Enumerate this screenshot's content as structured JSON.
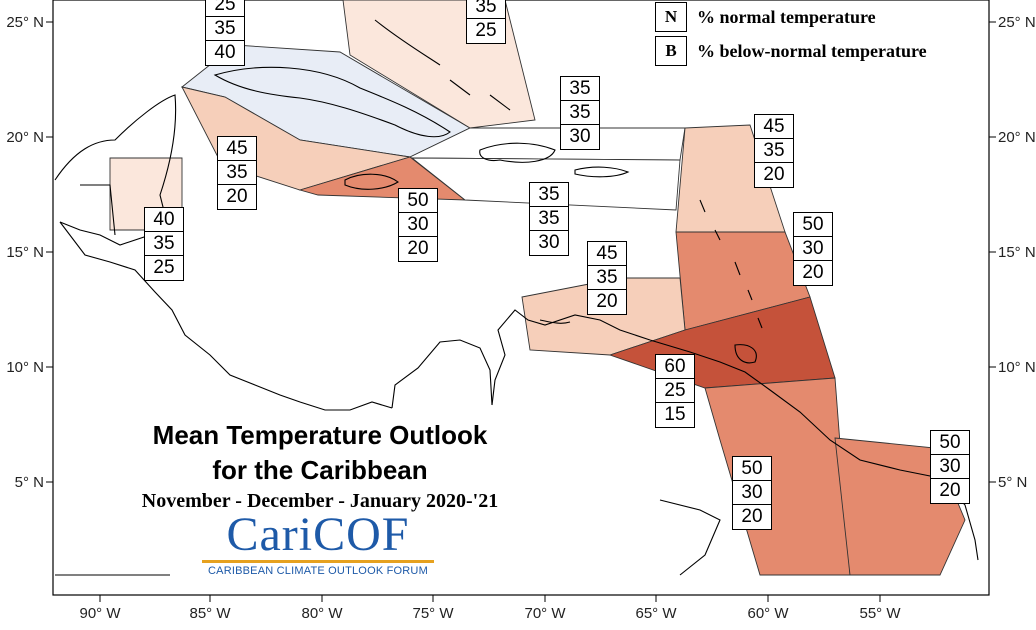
{
  "map": {
    "title_line1": "Mean Temperature Outlook",
    "title_line2": "for the Caribbean",
    "subtitle": "November - December - January 2020-'21",
    "logo": {
      "name": "CariCOF",
      "tagline": "CARIBBEAN CLIMATE OUTLOOK FORUM"
    },
    "legend": [
      {
        "key": "N",
        "text": "% normal temperature"
      },
      {
        "key": "B",
        "text": "% below-normal temperature"
      }
    ],
    "lon_labels": [
      "90° W",
      "85° W",
      "80° W",
      "75° W",
      "70° W",
      "65° W",
      "60° W",
      "55° W"
    ],
    "lat_labels": [
      "25° N",
      "20° N",
      "15° N",
      "10° N",
      "5° N"
    ],
    "color_scale": {
      "below_15": "#c5523a",
      "below_20": "#e48a6e",
      "below_20_light": "#edaa8f",
      "below_25": "#f6cfba",
      "below_25_pale": "#fbe7dc",
      "below_30": "#ffffff",
      "below_40": "#e8edf6"
    },
    "regions": [
      {
        "id": "bahamas-north",
        "values": [
          "35",
          "25"
        ]
      },
      {
        "id": "cuba",
        "values": [
          "25",
          "35",
          "40"
        ]
      },
      {
        "id": "belize-yucatan",
        "values": [
          "45",
          "35",
          "20"
        ]
      },
      {
        "id": "jamaica",
        "values": [
          "50",
          "30",
          "20"
        ]
      },
      {
        "id": "hispaniola-north",
        "values": [
          "35",
          "35",
          "30"
        ]
      },
      {
        "id": "puerto-rico",
        "values": [
          "35",
          "35",
          "30"
        ]
      },
      {
        "id": "belize",
        "values": [
          "40",
          "35",
          "25"
        ]
      },
      {
        "id": "leeward-islands",
        "values": [
          "45",
          "35",
          "20"
        ]
      },
      {
        "id": "windward-islands",
        "values": [
          "50",
          "30",
          "20"
        ]
      },
      {
        "id": "abc-islands",
        "values": [
          "45",
          "35",
          "20"
        ]
      },
      {
        "id": "trinidad",
        "values": [
          "60",
          "25",
          "15"
        ]
      },
      {
        "id": "guyana",
        "values": [
          "50",
          "30",
          "20"
        ]
      },
      {
        "id": "suriname-french-guiana",
        "values": [
          "50",
          "30",
          "20"
        ]
      }
    ]
  }
}
